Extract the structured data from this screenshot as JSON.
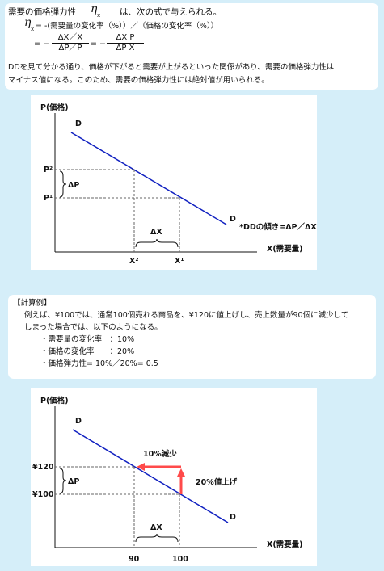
{
  "intro": {
    "line1_a": "需要の価格弾力性",
    "eta": "η",
    "eta_sub": "x",
    "line1_b": "は、次の式で与えられる。",
    "formula1": "= -(需要量の変化率（%））／（価格の変化率（%））",
    "eq_prefix": "= −",
    "frac1_num": "ΔX／X",
    "frac1_den": "ΔP／P",
    "eq_mid": "= −",
    "frac2_num": "ΔX P",
    "frac2_den": "ΔP X",
    "para1": "DDを見て分かる通り、価格が下がると需要が上がるといった関係があり、需要の価格弾力性は",
    "para2": "マイナス値になる。このため、需要の価格弾力性には絶対値が用いられる。"
  },
  "graph1": {
    "y_axis": "P(価格)",
    "x_axis": "X(需要量)",
    "curve_top": "D",
    "curve_bottom": "D",
    "p2": "P²",
    "p1": "P¹",
    "x2": "X²",
    "x1": "X¹",
    "delta_p": "ΔP",
    "delta_x": "ΔX",
    "slope_note": "*DDの傾き=ΔP／ΔX"
  },
  "example": {
    "heading": "【計算例】",
    "line1": "例えば、¥100では、通常100個売れる商品を、¥120に値上げし、売上数量が90個に減少して",
    "line2": "しまった場合では、以下のようになる。",
    "item1": "・需要量の変化率　：10%",
    "item2": "・価格の変化率　　：20%",
    "item3": "・価格弾力性= 10%／20%= 0.5"
  },
  "graph2": {
    "y_axis": "P(価格)",
    "x_axis": "X(需要量)",
    "curve_top": "D",
    "curve_bottom": "D",
    "p_high": "¥120",
    "p_low": "¥100",
    "x_left": "90",
    "x_right": "100",
    "delta_p": "ΔP",
    "delta_x": "ΔX",
    "decrease_note": "10%減少",
    "increase_note": "20%値上げ",
    "arrow_color": "#ff4a4a",
    "line_color": "#1020c0"
  }
}
